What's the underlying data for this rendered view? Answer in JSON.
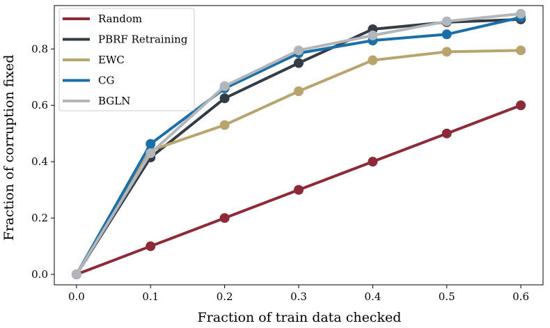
{
  "chart_data": {
    "type": "line",
    "title": "",
    "xlabel": "Fraction of train data checked",
    "ylabel": "Fraction of corruption fixed",
    "x": [
      0.0,
      0.1,
      0.2,
      0.3,
      0.4,
      0.5,
      0.6
    ],
    "xticks": [
      "0.0",
      "0.1",
      "0.2",
      "0.3",
      "0.4",
      "0.5",
      "0.6"
    ],
    "yticks": [
      "0.0",
      "0.2",
      "0.4",
      "0.6",
      "0.8"
    ],
    "xlim": [
      -0.03,
      0.63
    ],
    "ylim": [
      -0.037,
      0.954
    ],
    "grid": false,
    "legend_position": "top-left",
    "series": [
      {
        "name": "Random",
        "color": "#8c2b37",
        "values": [
          0.0,
          0.1,
          0.2,
          0.3,
          0.4,
          0.5,
          0.6
        ]
      },
      {
        "name": "PBRF Retraining",
        "color": "#333c45",
        "values": [
          0.0,
          0.415,
          0.625,
          0.75,
          0.87,
          0.895,
          0.905
        ]
      },
      {
        "name": "EWC",
        "color": "#b8a46f",
        "values": [
          0.0,
          0.44,
          0.53,
          0.65,
          0.76,
          0.79,
          0.795
        ]
      },
      {
        "name": "CG",
        "color": "#1b6fa8",
        "values": [
          0.0,
          0.463,
          0.66,
          0.785,
          0.83,
          0.852,
          0.912
        ]
      },
      {
        "name": "BGLN",
        "color": "#b2b6ba",
        "values": [
          0.0,
          0.43,
          0.668,
          0.795,
          0.848,
          0.898,
          0.925
        ]
      }
    ]
  }
}
